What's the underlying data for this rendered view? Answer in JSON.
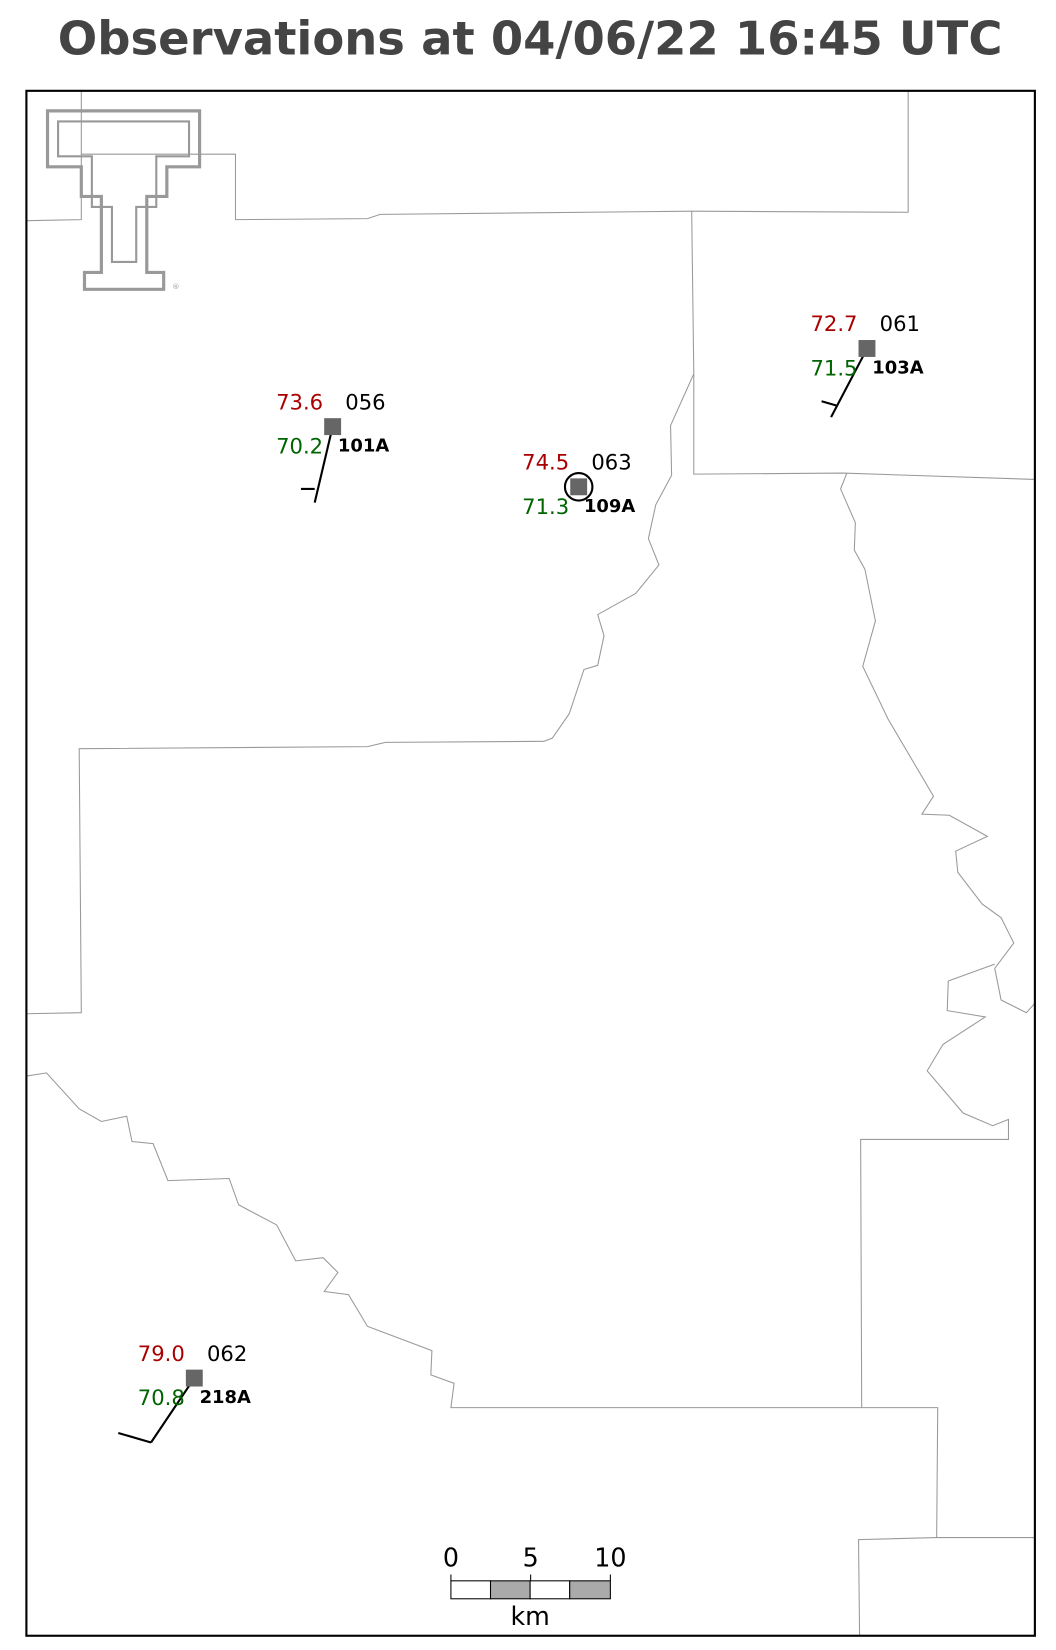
{
  "title": "Observations at 04/06/22 16:45 UTC",
  "stations": [
    {
      "id": "101A",
      "temperature": "73.6",
      "dewpoint": "70.2",
      "pressure": "056"
    },
    {
      "id": "109A",
      "temperature": "74.5",
      "dewpoint": "71.3",
      "pressure": "063"
    },
    {
      "id": "103A",
      "temperature": "72.7",
      "dewpoint": "71.5",
      "pressure": "061"
    },
    {
      "id": "218A",
      "temperature": "79.0",
      "dewpoint": "70.8",
      "pressure": "062"
    }
  ],
  "scale_bar": {
    "ticks": [
      0,
      5,
      10
    ],
    "unit": "km"
  }
}
